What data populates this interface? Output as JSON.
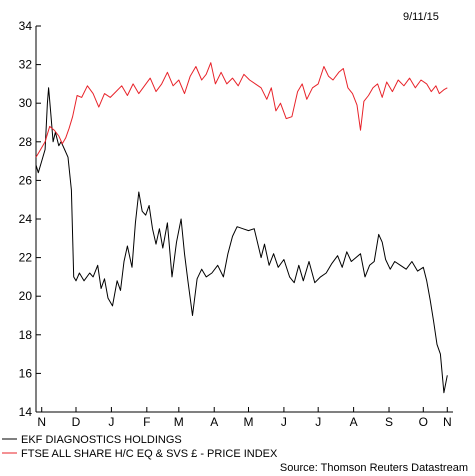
{
  "date_label": "9/11/15",
  "source": "Source: Thomson Reuters Datastream",
  "chart_data": {
    "type": "line",
    "ylim": [
      14,
      34
    ],
    "yticks": [
      14,
      16,
      18,
      20,
      22,
      24,
      26,
      28,
      30,
      32,
      34
    ],
    "xlim": [
      "2014-11-10",
      "2015-11-10"
    ],
    "xticks": [
      {
        "label": "N",
        "date": "2014-11-15"
      },
      {
        "label": "D",
        "date": "2014-12-15"
      },
      {
        "label": "J",
        "date": "2015-01-15"
      },
      {
        "label": "F",
        "date": "2015-02-15"
      },
      {
        "label": "M",
        "date": "2015-03-15"
      },
      {
        "label": "A",
        "date": "2015-04-15"
      },
      {
        "label": "M",
        "date": "2015-05-15"
      },
      {
        "label": "J",
        "date": "2015-06-15"
      },
      {
        "label": "J",
        "date": "2015-07-15"
      },
      {
        "label": "A",
        "date": "2015-08-15"
      },
      {
        "label": "S",
        "date": "2015-09-15"
      },
      {
        "label": "O",
        "date": "2015-10-15"
      },
      {
        "label": "N",
        "date": "2015-11-05"
      }
    ],
    "grid": false,
    "legend_position": "bottom-left",
    "series": [
      {
        "name": "EKF DIAGNOSTICS HOLDINGS",
        "color": "#000000",
        "points": [
          [
            "2014-11-10",
            26.8
          ],
          [
            "2014-11-12",
            26.4
          ],
          [
            "2014-11-15",
            27.0
          ],
          [
            "2014-11-18",
            27.6
          ],
          [
            "2014-11-20",
            30.0
          ],
          [
            "2014-11-21",
            30.8
          ],
          [
            "2014-11-23",
            29.4
          ],
          [
            "2014-11-25",
            28.0
          ],
          [
            "2014-11-27",
            28.5
          ],
          [
            "2014-11-30",
            27.8
          ],
          [
            "2014-12-02",
            28.0
          ],
          [
            "2014-12-05",
            27.6
          ],
          [
            "2014-12-08",
            27.2
          ],
          [
            "2014-12-11",
            25.5
          ],
          [
            "2014-12-13",
            21.0
          ],
          [
            "2014-12-15",
            20.8
          ],
          [
            "2014-12-18",
            21.2
          ],
          [
            "2014-12-22",
            20.8
          ],
          [
            "2014-12-27",
            21.2
          ],
          [
            "2014-12-30",
            21.0
          ],
          [
            "2015-01-03",
            21.6
          ],
          [
            "2015-01-06",
            20.4
          ],
          [
            "2015-01-09",
            20.9
          ],
          [
            "2015-01-12",
            19.9
          ],
          [
            "2015-01-16",
            19.5
          ],
          [
            "2015-01-20",
            20.8
          ],
          [
            "2015-01-23",
            20.3
          ],
          [
            "2015-01-26",
            21.8
          ],
          [
            "2015-01-29",
            22.6
          ],
          [
            "2015-02-02",
            21.5
          ],
          [
            "2015-02-05",
            23.8
          ],
          [
            "2015-02-08",
            25.4
          ],
          [
            "2015-02-11",
            24.4
          ],
          [
            "2015-02-14",
            24.2
          ],
          [
            "2015-02-17",
            24.7
          ],
          [
            "2015-02-20",
            23.5
          ],
          [
            "2015-02-23",
            22.7
          ],
          [
            "2015-02-26",
            23.5
          ],
          [
            "2015-03-01",
            22.5
          ],
          [
            "2015-03-05",
            23.8
          ],
          [
            "2015-03-09",
            21.0
          ],
          [
            "2015-03-13",
            22.8
          ],
          [
            "2015-03-17",
            24.0
          ],
          [
            "2015-03-20",
            22.2
          ],
          [
            "2015-03-23",
            20.8
          ],
          [
            "2015-03-27",
            19.0
          ],
          [
            "2015-03-31",
            20.9
          ],
          [
            "2015-04-04",
            21.4
          ],
          [
            "2015-04-08",
            21.0
          ],
          [
            "2015-04-13",
            21.2
          ],
          [
            "2015-04-18",
            21.6
          ],
          [
            "2015-04-23",
            21.0
          ],
          [
            "2015-04-27",
            22.2
          ],
          [
            "2015-05-01",
            23.1
          ],
          [
            "2015-05-05",
            23.6
          ],
          [
            "2015-05-10",
            23.5
          ],
          [
            "2015-05-15",
            23.4
          ],
          [
            "2015-05-20",
            23.5
          ],
          [
            "2015-05-26",
            22.0
          ],
          [
            "2015-05-29",
            22.7
          ],
          [
            "2015-06-02",
            21.6
          ],
          [
            "2015-06-06",
            22.2
          ],
          [
            "2015-06-10",
            21.5
          ],
          [
            "2015-06-15",
            21.9
          ],
          [
            "2015-06-20",
            21.0
          ],
          [
            "2015-06-24",
            20.7
          ],
          [
            "2015-06-28",
            21.6
          ],
          [
            "2015-07-02",
            20.8
          ],
          [
            "2015-07-07",
            21.8
          ],
          [
            "2015-07-12",
            20.7
          ],
          [
            "2015-07-17",
            21.0
          ],
          [
            "2015-07-22",
            21.2
          ],
          [
            "2015-07-27",
            21.7
          ],
          [
            "2015-08-01",
            22.1
          ],
          [
            "2015-08-05",
            21.5
          ],
          [
            "2015-08-09",
            22.3
          ],
          [
            "2015-08-13",
            21.8
          ],
          [
            "2015-08-17",
            22.0
          ],
          [
            "2015-08-21",
            22.2
          ],
          [
            "2015-08-25",
            21.0
          ],
          [
            "2015-08-29",
            21.6
          ],
          [
            "2015-09-02",
            21.8
          ],
          [
            "2015-09-06",
            23.2
          ],
          [
            "2015-09-09",
            22.8
          ],
          [
            "2015-09-12",
            21.9
          ],
          [
            "2015-09-16",
            21.4
          ],
          [
            "2015-09-20",
            21.8
          ],
          [
            "2015-09-25",
            21.6
          ],
          [
            "2015-09-30",
            21.4
          ],
          [
            "2015-10-05",
            21.8
          ],
          [
            "2015-10-10",
            21.3
          ],
          [
            "2015-10-15",
            21.5
          ],
          [
            "2015-10-18",
            20.8
          ],
          [
            "2015-10-21",
            19.8
          ],
          [
            "2015-10-24",
            18.7
          ],
          [
            "2015-10-27",
            17.5
          ],
          [
            "2015-10-30",
            17.0
          ],
          [
            "2015-11-02",
            15.0
          ],
          [
            "2015-11-05",
            15.9
          ]
        ]
      },
      {
        "name": "FTSE ALL SHARE H/C EQ & SVS £ - PRICE INDEX",
        "color": "#e8232a",
        "points": [
          [
            "2014-11-10",
            27.2
          ],
          [
            "2014-11-14",
            27.6
          ],
          [
            "2014-11-18",
            28.0
          ],
          [
            "2014-11-22",
            28.8
          ],
          [
            "2014-11-26",
            28.6
          ],
          [
            "2014-11-30",
            28.3
          ],
          [
            "2014-12-03",
            27.9
          ],
          [
            "2014-12-06",
            28.2
          ],
          [
            "2014-12-09",
            28.7
          ],
          [
            "2014-12-12",
            29.3
          ],
          [
            "2014-12-16",
            30.4
          ],
          [
            "2014-12-20",
            30.3
          ],
          [
            "2014-12-25",
            30.9
          ],
          [
            "2014-12-30",
            30.5
          ],
          [
            "2015-01-04",
            29.8
          ],
          [
            "2015-01-09",
            30.5
          ],
          [
            "2015-01-14",
            30.3
          ],
          [
            "2015-01-19",
            30.6
          ],
          [
            "2015-01-24",
            30.9
          ],
          [
            "2015-01-29",
            30.4
          ],
          [
            "2015-02-03",
            31.0
          ],
          [
            "2015-02-08",
            30.5
          ],
          [
            "2015-02-13",
            30.9
          ],
          [
            "2015-02-18",
            31.3
          ],
          [
            "2015-02-23",
            30.6
          ],
          [
            "2015-02-28",
            31.0
          ],
          [
            "2015-03-05",
            31.6
          ],
          [
            "2015-03-10",
            30.9
          ],
          [
            "2015-03-15",
            31.2
          ],
          [
            "2015-03-20",
            30.5
          ],
          [
            "2015-03-25",
            31.4
          ],
          [
            "2015-03-30",
            31.9
          ],
          [
            "2015-04-04",
            31.2
          ],
          [
            "2015-04-08",
            31.5
          ],
          [
            "2015-04-12",
            32.1
          ],
          [
            "2015-04-16",
            31.0
          ],
          [
            "2015-04-21",
            31.6
          ],
          [
            "2015-04-26",
            31.0
          ],
          [
            "2015-05-01",
            31.3
          ],
          [
            "2015-05-06",
            30.9
          ],
          [
            "2015-05-11",
            31.5
          ],
          [
            "2015-05-16",
            31.2
          ],
          [
            "2015-05-21",
            31.0
          ],
          [
            "2015-05-26",
            30.8
          ],
          [
            "2015-05-31",
            30.2
          ],
          [
            "2015-06-04",
            30.8
          ],
          [
            "2015-06-08",
            29.6
          ],
          [
            "2015-06-12",
            30.0
          ],
          [
            "2015-06-17",
            29.2
          ],
          [
            "2015-06-22",
            29.3
          ],
          [
            "2015-06-27",
            30.6
          ],
          [
            "2015-07-01",
            31.0
          ],
          [
            "2015-07-05",
            30.2
          ],
          [
            "2015-07-10",
            30.8
          ],
          [
            "2015-07-15",
            31.0
          ],
          [
            "2015-07-20",
            31.9
          ],
          [
            "2015-07-24",
            31.4
          ],
          [
            "2015-07-28",
            31.2
          ],
          [
            "2015-08-02",
            31.6
          ],
          [
            "2015-08-06",
            31.8
          ],
          [
            "2015-08-10",
            30.8
          ],
          [
            "2015-08-14",
            30.5
          ],
          [
            "2015-08-18",
            29.9
          ],
          [
            "2015-08-21",
            28.6
          ],
          [
            "2015-08-24",
            30.1
          ],
          [
            "2015-08-28",
            30.4
          ],
          [
            "2015-09-01",
            30.8
          ],
          [
            "2015-09-05",
            31.0
          ],
          [
            "2015-09-09",
            30.3
          ],
          [
            "2015-09-13",
            31.1
          ],
          [
            "2015-09-18",
            30.6
          ],
          [
            "2015-09-23",
            31.2
          ],
          [
            "2015-09-28",
            30.9
          ],
          [
            "2015-10-03",
            31.3
          ],
          [
            "2015-10-08",
            30.8
          ],
          [
            "2015-10-13",
            31.2
          ],
          [
            "2015-10-18",
            31.0
          ],
          [
            "2015-10-22",
            30.6
          ],
          [
            "2015-10-26",
            30.9
          ],
          [
            "2015-10-29",
            30.5
          ],
          [
            "2015-11-02",
            30.7
          ],
          [
            "2015-11-05",
            30.8
          ]
        ]
      }
    ]
  }
}
